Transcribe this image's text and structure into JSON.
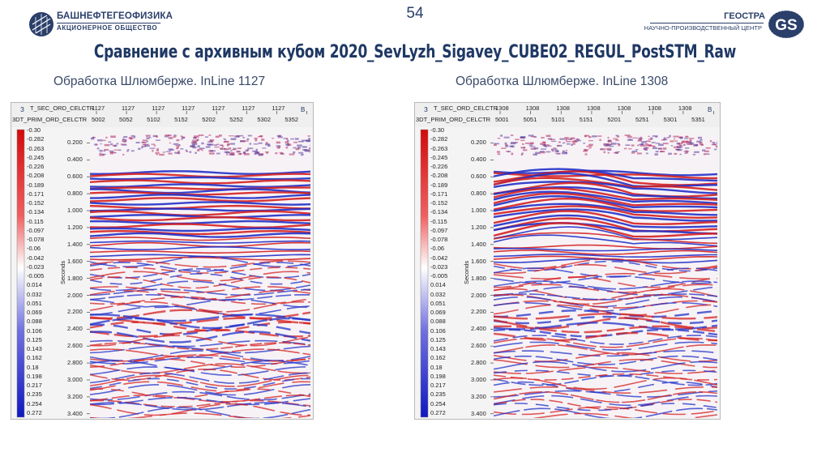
{
  "header": {
    "left_logo_line1": "БАШНЕФТЕГЕОФИЗИКА",
    "left_logo_line2": "АКЦИОНЕРНОЕ ОБЩЕСТВО",
    "page_number": "54",
    "right_logo_line1": "ГЕОСТРА",
    "right_logo_line2": "НАУЧНО-ПРОИЗВОДСТВЕННЫЙ ЦЕНТР",
    "right_logo_mark": "GS"
  },
  "title": "Сравнение с архивным кубом 2020_SevLyzh_Sigavey_CUBE02_REGUL_PostSTM_Raw",
  "panels": [
    {
      "subtitle": "Обработка Шлюмберже. InLine 1127",
      "row1_label": "T_SEC_ORD_CELCTR",
      "row1_values": [
        "1127",
        "1127",
        "1127",
        "1127",
        "1127",
        "1127",
        "1127"
      ],
      "row2_label": "3DT_PRIM_ORD_CELCTR",
      "row2_values": [
        "5002",
        "5052",
        "5102",
        "5152",
        "5202",
        "5252",
        "5302",
        "5352"
      ],
      "corner_left": "З",
      "corner_right": "В"
    },
    {
      "subtitle": "Обработка Шлюмберже. InLine 1308",
      "row1_label": "T_SEC_ORD_CELCTR",
      "row1_values": [
        "1308",
        "1308",
        "1308",
        "1308",
        "1308",
        "1308",
        "1308"
      ],
      "row2_label": "3DT_PRIM_ORD_CELCTR",
      "row2_values": [
        "5001",
        "5051",
        "5101",
        "5151",
        "5201",
        "5251",
        "5301",
        "5351"
      ],
      "corner_left": "З",
      "corner_right": "В"
    }
  ],
  "colorbar_labels": [
    "-0.30",
    "-0.282",
    "-0.263",
    "-0.245",
    "-0.226",
    "-0.208",
    "-0.189",
    "-0.171",
    "-0.152",
    "-0.134",
    "-0.115",
    "-0.097",
    "-0.078",
    "-0.06",
    "-0.042",
    "-0.023",
    "-0.005",
    "0.014",
    "0.032",
    "0.051",
    "0.069",
    "0.088",
    "0.106",
    "0.125",
    "0.143",
    "0.162",
    "0.18",
    "0.198",
    "0.217",
    "0.235",
    "0.254",
    "0.272"
  ],
  "time_labels": [
    "0.200",
    "0.400",
    "0.600",
    "0.800",
    "1.000",
    "1.200",
    "1.400",
    "1.600",
    "1.800",
    "2.000",
    "2.200",
    "2.400",
    "2.600",
    "2.800",
    "3.000",
    "3.200",
    "3.400"
  ],
  "axis_title": "Seconds",
  "colors": {
    "title": "#1f3864",
    "positive": "#d42020",
    "negative": "#2030c8"
  }
}
